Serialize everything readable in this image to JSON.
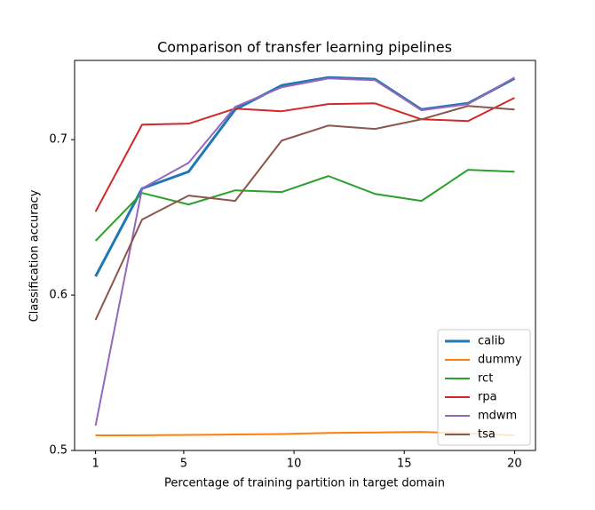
{
  "chart_data": {
    "type": "line",
    "title": "Comparison of transfer learning pipelines",
    "x_label": "Percentage of training partition in target domain",
    "y_label": "Classification accuracy",
    "x": [
      1,
      3.11,
      5.22,
      7.33,
      9.44,
      11.56,
      13.67,
      15.78,
      17.89,
      20
    ],
    "series": [
      {
        "name": "calib",
        "color": "#1f77b4",
        "linewidth": 3,
        "values": [
          0.612,
          0.6686,
          0.6794,
          0.7194,
          0.7349,
          0.74,
          0.7389,
          0.7194,
          0.7234,
          0.7394
        ]
      },
      {
        "name": "dummy",
        "color": "#ff7f0e",
        "linewidth": 2,
        "values": [
          0.5097,
          0.5098,
          0.51,
          0.5103,
          0.5106,
          0.5113,
          0.5116,
          0.5119,
          0.511,
          0.5097
        ]
      },
      {
        "name": "rct",
        "color": "#2ca02c",
        "linewidth": 2,
        "values": [
          0.6349,
          0.6657,
          0.6583,
          0.6674,
          0.6663,
          0.6766,
          0.6651,
          0.6606,
          0.6806,
          0.6794
        ]
      },
      {
        "name": "rpa",
        "color": "#d62728",
        "linewidth": 2,
        "values": [
          0.6537,
          0.7097,
          0.7103,
          0.72,
          0.7183,
          0.7229,
          0.7234,
          0.7131,
          0.712,
          0.7269
        ]
      },
      {
        "name": "mdwm",
        "color": "#9467bd",
        "linewidth": 2,
        "values": [
          0.516,
          0.6686,
          0.6851,
          0.7211,
          0.7337,
          0.7394,
          0.7383,
          0.7189,
          0.7229,
          0.74
        ]
      },
      {
        "name": "tsa",
        "color": "#8c564b",
        "linewidth": 2,
        "values": [
          0.584,
          0.6486,
          0.664,
          0.6606,
          0.6994,
          0.7091,
          0.7069,
          0.7131,
          0.7217,
          0.7194
        ]
      }
    ],
    "xlim": [
      0.05,
      20.95
    ],
    "ylim": [
      0.5,
      0.751
    ],
    "xticks": [
      1,
      5,
      10,
      15,
      20
    ],
    "yticks": [
      0.5,
      0.6,
      0.7
    ],
    "grid": false,
    "legend": "lower right"
  }
}
